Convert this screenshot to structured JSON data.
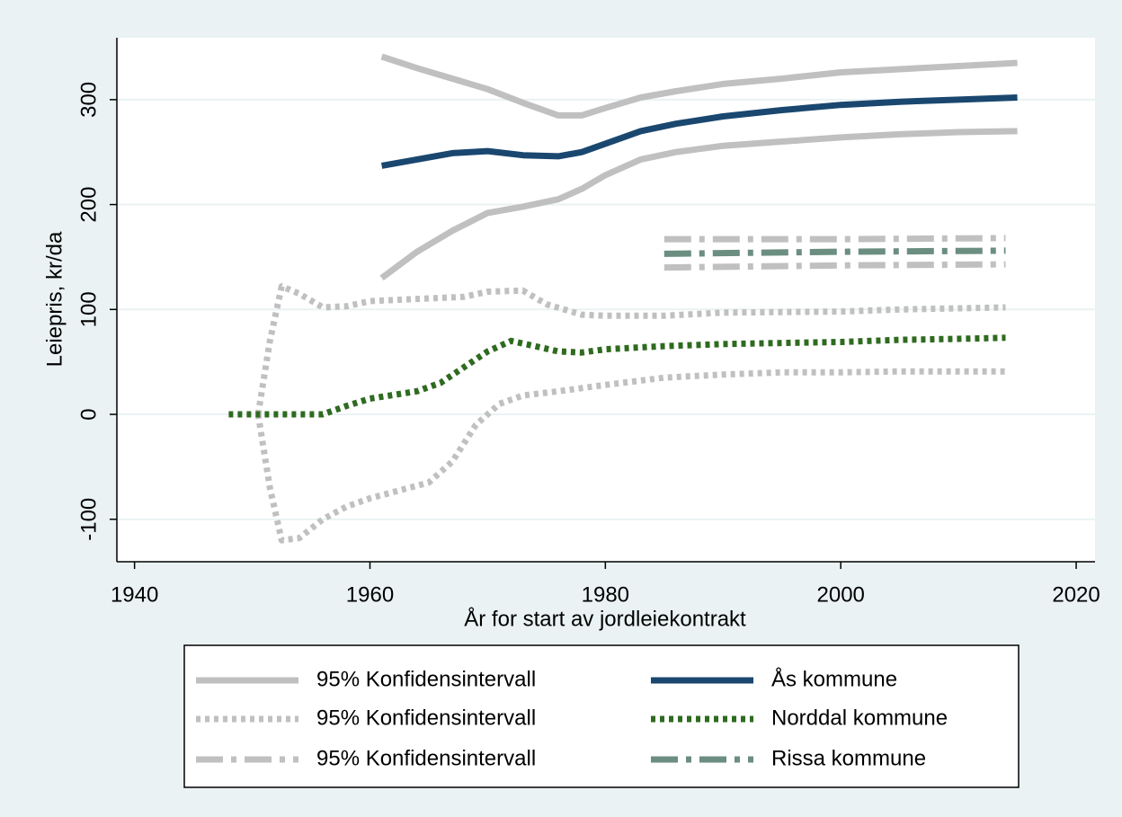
{
  "chart_data": {
    "type": "line",
    "xlabel": "År for start av jordleiekontrakt",
    "ylabel": "Leiepris, kr/da",
    "xlim": [
      1938.5,
      2021.6
    ],
    "xticks": [
      1940,
      1960,
      1980,
      2000,
      2020
    ],
    "ylim": [
      -140.5,
      359
    ],
    "yticks": [
      -100,
      0,
      100,
      200,
      300
    ],
    "grid": true,
    "legend_position": "bottom",
    "legend_columns": 2,
    "series": [
      {
        "name": "95% Konfidensintervall",
        "color": "#c0c0c0",
        "style": "solid",
        "lines": [
          {
            "x": [
              1961,
              1964,
              1967,
              1970,
              1973,
              1976,
              1978,
              1980,
              1983,
              1986,
              1990,
              1995,
              2000,
              2005,
              2010,
              2015
            ],
            "values": [
              341,
              330,
              320,
              310,
              297,
              285,
              285,
              292,
              302,
              308,
              315,
              320,
              326,
              329,
              332,
              335
            ]
          },
          {
            "x": [
              1961,
              1964,
              1967,
              1970,
              1973,
              1976,
              1978,
              1980,
              1983,
              1986,
              1990,
              1995,
              2000,
              2005,
              2010,
              2015
            ],
            "values": [
              130,
              155,
              175,
              192,
              198,
              205,
              215,
              228,
              243,
              250,
              256,
              260,
              264,
              267,
              269,
              270
            ]
          }
        ]
      },
      {
        "name": "Ås kommune",
        "color": "#1a476f",
        "style": "solid",
        "lines": [
          {
            "x": [
              1961,
              1964,
              1967,
              1970,
              1973,
              1976,
              1978,
              1980,
              1983,
              1986,
              1990,
              1995,
              2000,
              2005,
              2010,
              2015
            ],
            "values": [
              237,
              243,
              249,
              251,
              247,
              246,
              250,
              258,
              270,
              277,
              284,
              290,
              295,
              298,
              300,
              302
            ]
          }
        ]
      },
      {
        "name": "95% Konfidensintervall",
        "color": "#c0c0c0",
        "style": "dot",
        "lines": [
          {
            "x": [
              1950.5,
              1951.5,
              1952.5,
              1954,
              1956,
              1958,
              1960,
              1964,
              1968,
              1970,
              1973,
              1975,
              1978,
              1980,
              1985,
              1990,
              2000,
              2005,
              2014
            ],
            "values": [
              0,
              70,
              122,
              115,
              102,
              103,
              108,
              110,
              112,
              117,
              118,
              105,
              95,
              94,
              94,
              97,
              98,
              100,
              102
            ]
          },
          {
            "x": [
              1950.5,
              1951.5,
              1952.5,
              1954,
              1956,
              1958,
              1960,
              1965,
              1967,
              1969,
              1971,
              1973,
              1976,
              1980,
              1985,
              1990,
              1995,
              2000,
              2005,
              2014
            ],
            "values": [
              0,
              -70,
              -120,
              -118,
              -100,
              -88,
              -80,
              -65,
              -45,
              -10,
              10,
              18,
              22,
              28,
              35,
              38,
              40,
              40,
              41,
              41
            ]
          }
        ]
      },
      {
        "name": "Norddal kommune",
        "color": "#2e6b1f",
        "style": "dot",
        "lines": [
          {
            "x": [
              1948,
              1952,
              1956,
              1958,
              1960,
              1964,
              1966,
              1968,
              1970,
              1972,
              1974,
              1976,
              1978,
              1980,
              1985,
              1990,
              1995,
              2000,
              2005,
              2010,
              2014
            ],
            "values": [
              0,
              0,
              0,
              8,
              15,
              22,
              30,
              45,
              60,
              70,
              65,
              60,
              59,
              62,
              65,
              67,
              68,
              69,
              71,
              72,
              73
            ]
          }
        ]
      },
      {
        "name": "95% Konfidensintervall",
        "color": "#c0c0c0",
        "style": "dashdot",
        "lines": [
          {
            "x": [
              1985,
              2000,
              2014
            ],
            "values": [
              167,
              167,
              168
            ]
          },
          {
            "x": [
              1985,
              2000,
              2014
            ],
            "values": [
              140,
              142,
              143
            ]
          }
        ]
      },
      {
        "name": "Rissa kommune",
        "color": "#6b8e80",
        "style": "dashdot",
        "lines": [
          {
            "x": [
              1985,
              2000,
              2014
            ],
            "values": [
              153,
              155,
              156
            ]
          }
        ]
      }
    ]
  }
}
